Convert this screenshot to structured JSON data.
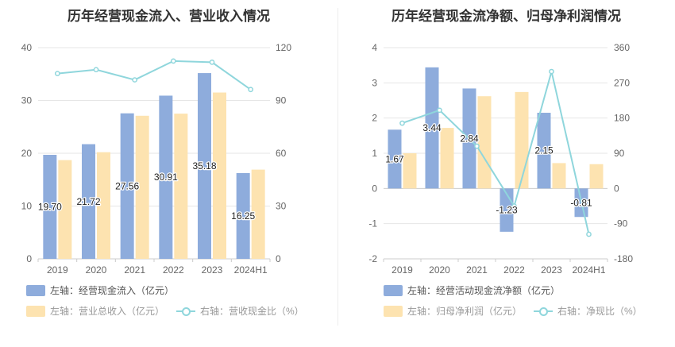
{
  "charts": [
    {
      "title": "历年经营现金流入、营业收入情况",
      "legend": [
        {
          "label": "左轴：经营现金流入（亿元）",
          "kind": "bar",
          "color": "#8eacdc"
        },
        {
          "label": "左轴：营业总收入（亿元）",
          "kind": "bar",
          "color": "#fde3b0"
        },
        {
          "label": "右轴：营收现金比（%）",
          "kind": "line",
          "color": "#8fd6dc"
        }
      ]
    },
    {
      "title": "历年经营现金流净额、归母净利润情况",
      "legend": [
        {
          "label": "左轴：经营活动现金流净额（亿元）",
          "kind": "bar",
          "color": "#8eacdc"
        },
        {
          "label": "左轴：归母净利润（亿元）",
          "kind": "bar",
          "color": "#fde3b0"
        },
        {
          "label": "右轴：净现比（%）",
          "kind": "line",
          "color": "#8fd6dc"
        }
      ]
    }
  ],
  "chart_data": [
    {
      "type": "bar",
      "title": "历年经营现金流入、营业收入情况",
      "categories": [
        "2019",
        "2020",
        "2021",
        "2022",
        "2023",
        "2024H1"
      ],
      "ylim": [
        0,
        40
      ],
      "y_ticks": [
        0,
        10,
        20,
        30,
        40
      ],
      "y2lim": [
        0,
        120
      ],
      "y2_ticks": [
        0,
        30,
        60,
        90,
        120
      ],
      "grid": true,
      "legend_position": "bottom",
      "series": [
        {
          "name": "左轴：经营现金流入（亿元）",
          "axis": "left",
          "type": "bar",
          "color": "#8eacdc",
          "values": [
            19.7,
            21.72,
            27.56,
            30.91,
            35.18,
            16.25
          ],
          "labels": [
            "19.70",
            "21.72",
            "27.56",
            "30.91",
            "35.18",
            "16.25"
          ]
        },
        {
          "name": "左轴：营业总收入（亿元）",
          "axis": "left",
          "type": "bar",
          "color": "#fde3b0",
          "values": [
            18.7,
            20.2,
            27.1,
            27.5,
            31.5,
            16.9
          ]
        },
        {
          "name": "右轴：营收现金比（%）",
          "axis": "right",
          "type": "line",
          "color": "#8fd6dc",
          "values": [
            105.3,
            107.5,
            101.7,
            112.4,
            111.7,
            96.2
          ]
        }
      ]
    },
    {
      "type": "bar",
      "title": "历年经营现金流净额、归母净利润情况",
      "categories": [
        "2019",
        "2020",
        "2021",
        "2022",
        "2023",
        "2024H1"
      ],
      "ylim": [
        -2,
        4
      ],
      "y_ticks": [
        -2,
        -1,
        0,
        1,
        2,
        3,
        4
      ],
      "y2lim": [
        -180,
        360
      ],
      "y2_ticks": [
        -180,
        -90,
        0,
        90,
        180,
        270,
        360
      ],
      "grid": true,
      "legend_position": "bottom",
      "series": [
        {
          "name": "左轴：经营活动现金流净额（亿元）",
          "axis": "left",
          "type": "bar",
          "color": "#8eacdc",
          "values": [
            1.67,
            3.44,
            2.84,
            -1.23,
            2.15,
            -0.81
          ],
          "labels": [
            "1.67",
            "3.44",
            "2.84",
            "-1.23",
            "2.15",
            "-0.81"
          ]
        },
        {
          "name": "左轴：归母净利润（亿元）",
          "axis": "left",
          "type": "bar",
          "color": "#fde3b0",
          "values": [
            1.0,
            1.72,
            2.62,
            2.74,
            0.72,
            0.69
          ]
        },
        {
          "name": "右轴：净现比（%）",
          "axis": "right",
          "type": "line",
          "color": "#8fd6dc",
          "values": [
            167,
            200,
            108,
            -45,
            299,
            -117
          ]
        }
      ]
    }
  ]
}
